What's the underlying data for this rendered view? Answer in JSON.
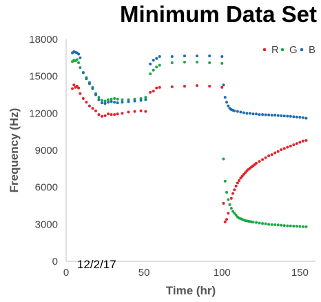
{
  "chart_data": {
    "type": "scatter",
    "title": "Minimum Data Set",
    "xlabel": "Time (hr)",
    "ylabel": "Frequency (Hz)",
    "xlim": [
      0,
      160
    ],
    "ylim": [
      0,
      18000
    ],
    "xticks": [
      0,
      50,
      100,
      150
    ],
    "yticks": [
      0,
      3000,
      6000,
      9000,
      12000,
      15000,
      18000
    ],
    "xtick_labels": [
      "0",
      "50",
      "100",
      "150"
    ],
    "ytick_labels": [
      "0",
      "3000",
      "6000",
      "9000",
      "12000",
      "15000",
      "18000"
    ],
    "grid": false,
    "legend_position": "top-right",
    "annotation": "12/2/17",
    "series": [
      {
        "name": "R",
        "color": "#e3242b",
        "points": [
          [
            4,
            14000
          ],
          [
            5,
            14300
          ],
          [
            6,
            14100
          ],
          [
            7,
            14200
          ],
          [
            8,
            14050
          ],
          [
            9,
            13600
          ],
          [
            11,
            13200
          ],
          [
            13,
            12900
          ],
          [
            15,
            12600
          ],
          [
            17,
            12400
          ],
          [
            19,
            12200
          ],
          [
            21,
            11900
          ],
          [
            23,
            11750
          ],
          [
            25,
            11800
          ],
          [
            27,
            11950
          ],
          [
            29,
            11900
          ],
          [
            31,
            11900
          ],
          [
            33,
            11950
          ],
          [
            36,
            12000
          ],
          [
            40,
            12100
          ],
          [
            44,
            12150
          ],
          [
            48,
            12200
          ],
          [
            51,
            12150
          ],
          [
            54,
            13700
          ],
          [
            56,
            13800
          ],
          [
            58,
            14050
          ],
          [
            60,
            14100
          ],
          [
            68,
            14150
          ],
          [
            76,
            14200
          ],
          [
            84,
            14250
          ],
          [
            92,
            14200
          ],
          [
            100,
            14100
          ],
          [
            101,
            4700
          ],
          [
            102,
            3200
          ],
          [
            103,
            3400
          ],
          [
            104,
            3900
          ],
          [
            105,
            4600
          ],
          [
            106,
            5100
          ],
          [
            107,
            5500
          ],
          [
            108,
            5800
          ],
          [
            109,
            6100
          ],
          [
            110,
            6350
          ],
          [
            111,
            6550
          ],
          [
            112,
            6750
          ],
          [
            113,
            6900
          ],
          [
            114,
            7050
          ],
          [
            115,
            7200
          ],
          [
            116,
            7350
          ],
          [
            117,
            7450
          ],
          [
            118,
            7550
          ],
          [
            119,
            7650
          ],
          [
            120,
            7750
          ],
          [
            121,
            7850
          ],
          [
            122,
            7950
          ],
          [
            124,
            8100
          ],
          [
            126,
            8250
          ],
          [
            128,
            8400
          ],
          [
            130,
            8550
          ],
          [
            132,
            8650
          ],
          [
            134,
            8800
          ],
          [
            136,
            8900
          ],
          [
            138,
            9050
          ],
          [
            140,
            9150
          ],
          [
            142,
            9250
          ],
          [
            144,
            9350
          ],
          [
            146,
            9450
          ],
          [
            148,
            9550
          ],
          [
            150,
            9650
          ],
          [
            152,
            9750
          ],
          [
            154,
            9800
          ]
        ]
      },
      {
        "name": "G",
        "color": "#1da845",
        "points": [
          [
            4,
            16200
          ],
          [
            5,
            16300
          ],
          [
            6,
            16250
          ],
          [
            7,
            16350
          ],
          [
            8,
            16100
          ],
          [
            9,
            15700
          ],
          [
            11,
            15300
          ],
          [
            13,
            14900
          ],
          [
            15,
            14500
          ],
          [
            17,
            14100
          ],
          [
            19,
            13600
          ],
          [
            21,
            13300
          ],
          [
            23,
            13050
          ],
          [
            25,
            13000
          ],
          [
            27,
            13100
          ],
          [
            29,
            13150
          ],
          [
            31,
            13200
          ],
          [
            33,
            13150
          ],
          [
            36,
            13100
          ],
          [
            40,
            13100
          ],
          [
            44,
            13150
          ],
          [
            48,
            13200
          ],
          [
            51,
            13300
          ],
          [
            54,
            15200
          ],
          [
            56,
            15500
          ],
          [
            58,
            15750
          ],
          [
            60,
            15900
          ],
          [
            68,
            16100
          ],
          [
            76,
            16150
          ],
          [
            84,
            16150
          ],
          [
            92,
            16100
          ],
          [
            100,
            16050
          ],
          [
            101,
            8300
          ],
          [
            102,
            6500
          ],
          [
            103,
            5600
          ],
          [
            104,
            5000
          ],
          [
            105,
            4600
          ],
          [
            106,
            4300
          ],
          [
            107,
            4050
          ],
          [
            108,
            3900
          ],
          [
            109,
            3750
          ],
          [
            110,
            3600
          ],
          [
            111,
            3500
          ],
          [
            112,
            3450
          ],
          [
            113,
            3400
          ],
          [
            114,
            3350
          ],
          [
            115,
            3300
          ],
          [
            116,
            3280
          ],
          [
            117,
            3250
          ],
          [
            118,
            3230
          ],
          [
            119,
            3200
          ],
          [
            120,
            3180
          ],
          [
            122,
            3150
          ],
          [
            124,
            3100
          ],
          [
            126,
            3070
          ],
          [
            128,
            3050
          ],
          [
            130,
            3000
          ],
          [
            132,
            2980
          ],
          [
            134,
            2960
          ],
          [
            136,
            2950
          ],
          [
            138,
            2930
          ],
          [
            140,
            2900
          ],
          [
            142,
            2880
          ],
          [
            144,
            2870
          ],
          [
            146,
            2860
          ],
          [
            148,
            2850
          ],
          [
            150,
            2830
          ],
          [
            152,
            2810
          ],
          [
            154,
            2800
          ]
        ]
      },
      {
        "name": "B",
        "color": "#1f6bb5",
        "points": [
          [
            4,
            16900
          ],
          [
            5,
            17000
          ],
          [
            6,
            16950
          ],
          [
            7,
            16900
          ],
          [
            8,
            16800
          ],
          [
            9,
            16500
          ],
          [
            11,
            15300
          ],
          [
            13,
            14800
          ],
          [
            15,
            14400
          ],
          [
            17,
            14000
          ],
          [
            19,
            13500
          ],
          [
            21,
            13100
          ],
          [
            23,
            12850
          ],
          [
            25,
            12800
          ],
          [
            27,
            12900
          ],
          [
            29,
            12950
          ],
          [
            31,
            12900
          ],
          [
            33,
            12850
          ],
          [
            36,
            12900
          ],
          [
            40,
            12950
          ],
          [
            44,
            13000
          ],
          [
            48,
            13050
          ],
          [
            51,
            13100
          ],
          [
            54,
            16000
          ],
          [
            56,
            16300
          ],
          [
            58,
            16450
          ],
          [
            60,
            16600
          ],
          [
            68,
            16600
          ],
          [
            76,
            16650
          ],
          [
            84,
            16650
          ],
          [
            92,
            16650
          ],
          [
            100,
            16600
          ],
          [
            101,
            14300
          ],
          [
            102,
            13300
          ],
          [
            103,
            12900
          ],
          [
            104,
            12600
          ],
          [
            105,
            12400
          ],
          [
            106,
            12300
          ],
          [
            107,
            12250
          ],
          [
            108,
            12200
          ],
          [
            110,
            12150
          ],
          [
            112,
            12100
          ],
          [
            114,
            12050
          ],
          [
            116,
            12000
          ],
          [
            118,
            12000
          ],
          [
            120,
            11950
          ],
          [
            122,
            11950
          ],
          [
            124,
            11900
          ],
          [
            126,
            11900
          ],
          [
            128,
            11880
          ],
          [
            130,
            11870
          ],
          [
            132,
            11850
          ],
          [
            134,
            11850
          ],
          [
            136,
            11820
          ],
          [
            138,
            11800
          ],
          [
            140,
            11790
          ],
          [
            142,
            11770
          ],
          [
            144,
            11750
          ],
          [
            146,
            11720
          ],
          [
            148,
            11700
          ],
          [
            150,
            11680
          ],
          [
            152,
            11650
          ],
          [
            154,
            11600
          ]
        ]
      }
    ]
  }
}
